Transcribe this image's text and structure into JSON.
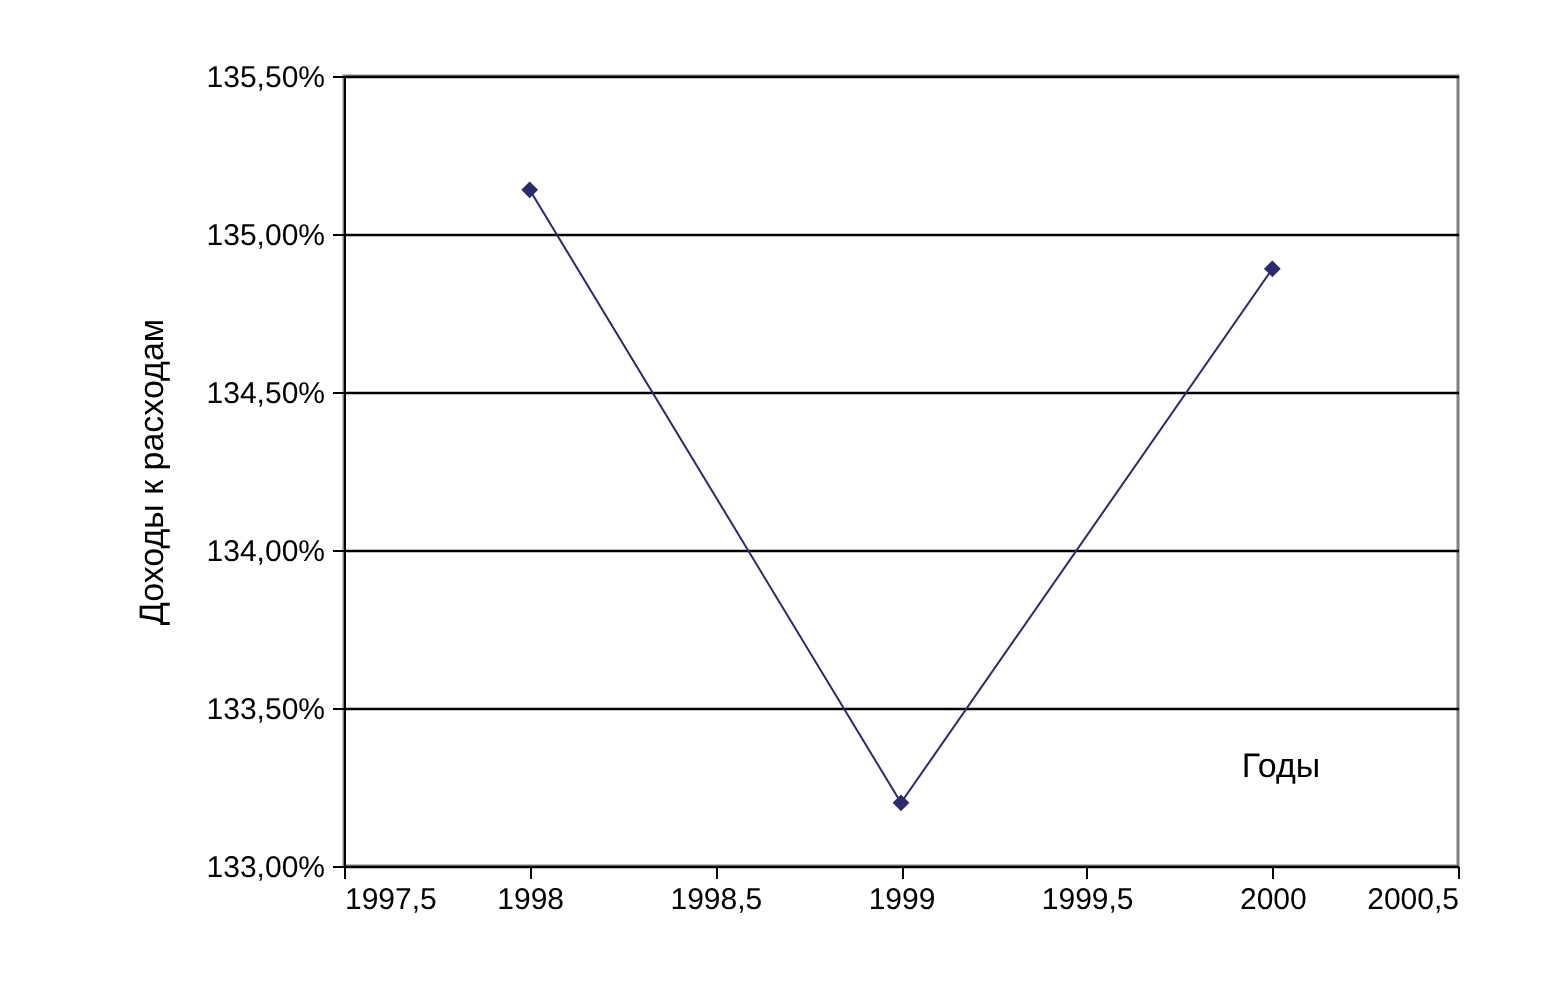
{
  "chart_data": {
    "type": "line",
    "ylabel": "Доходы к расходам",
    "xlabel": "Годы",
    "x": [
      1998,
      1999,
      2000
    ],
    "series": [
      {
        "color": "#2b2970",
        "values": [
          135.14,
          133.2,
          134.89
        ]
      }
    ],
    "xlim": [
      1997.5,
      2000.5
    ],
    "xticks": [
      {
        "value": 1997.5,
        "label": "1997,5"
      },
      1998,
      {
        "value": 1998.5,
        "label": "1998,5"
      },
      1999,
      {
        "value": 1999.5,
        "label": "1999,5"
      },
      2000,
      {
        "value": 2000.5,
        "label": "2000,5"
      }
    ],
    "ylim": [
      133,
      135.5
    ],
    "yticks": [
      {
        "value": 133,
        "label": "133,00%"
      },
      {
        "value": 133.5,
        "label": "133,50%"
      },
      {
        "value": 134,
        "label": "134,00%"
      },
      {
        "value": 134.5,
        "label": "134,50%"
      },
      {
        "value": 135,
        "label": "135,00%"
      },
      {
        "value": 135.5,
        "label": "135,50%"
      }
    ],
    "grid": "y",
    "legend": false,
    "marker": "diamond",
    "line_style": "solid"
  }
}
